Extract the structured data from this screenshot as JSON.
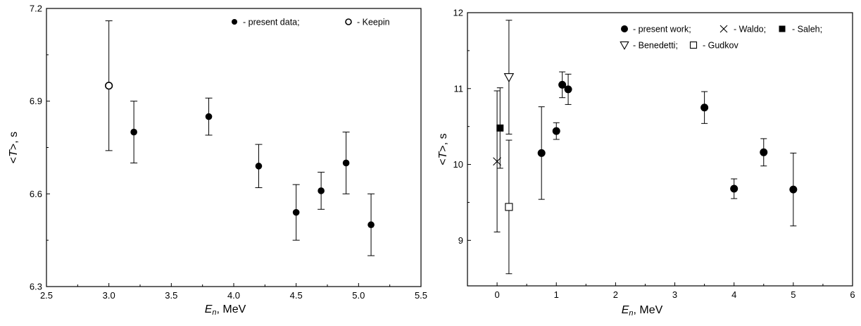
{
  "chart_data": [
    {
      "type": "scatter",
      "xlabel": {
        "var": "E",
        "sub": "n",
        "unit": ", MeV"
      },
      "ylabel": {
        "pre": "<",
        "var": "T",
        "post": ">, s"
      },
      "xlim": [
        2.5,
        5.5
      ],
      "ylim": [
        6.3,
        7.2
      ],
      "xticks": [
        "2.5",
        "3.0",
        "3.5",
        "4.0",
        "4.5",
        "5.0",
        "5.5"
      ],
      "yticks": [
        "6.3",
        "6.6",
        "6.9",
        "7.2"
      ],
      "legend_position": "top-right",
      "series": [
        {
          "name": "- present data;",
          "marker": "filled-circle",
          "points": [
            {
              "x": 3.2,
              "y": 6.8,
              "yerr": 0.1
            },
            {
              "x": 3.8,
              "y": 6.85,
              "yerr": 0.06
            },
            {
              "x": 4.2,
              "y": 6.69,
              "yerr": 0.07
            },
            {
              "x": 4.5,
              "y": 6.54,
              "yerr": 0.09
            },
            {
              "x": 4.7,
              "y": 6.61,
              "yerr": 0.06
            },
            {
              "x": 4.9,
              "y": 6.7,
              "yerr": 0.1
            },
            {
              "x": 5.1,
              "y": 6.5,
              "yerr": 0.1
            }
          ]
        },
        {
          "name": "- Keepin",
          "marker": "open-circle",
          "points": [
            {
              "x": 3.0,
              "y": 6.95,
              "yerr": 0.21
            }
          ]
        }
      ]
    },
    {
      "type": "scatter",
      "xlabel": {
        "var": "E",
        "sub": "n",
        "unit": ", MeV"
      },
      "ylabel": {
        "pre": "<",
        "var": "T",
        "post": ">, s"
      },
      "xlim": [
        -0.5,
        6
      ],
      "ylim": [
        8.4,
        12
      ],
      "xticks": [
        "0",
        "1",
        "2",
        "3",
        "4",
        "5",
        "6"
      ],
      "yticks": [
        "9",
        "10",
        "11",
        "12"
      ],
      "legend_position": "top-right",
      "series": [
        {
          "name": "- present work;",
          "marker": "filled-circle",
          "points": [
            {
              "x": 0.75,
              "y": 10.15,
              "yerr": 0.61
            },
            {
              "x": 1.0,
              "y": 10.44,
              "yerr": 0.11
            },
            {
              "x": 1.1,
              "y": 11.05,
              "yerr": 0.17
            },
            {
              "x": 1.2,
              "y": 10.99,
              "yerr": 0.2
            },
            {
              "x": 3.5,
              "y": 10.75,
              "yerr": 0.21
            },
            {
              "x": 4.0,
              "y": 9.68,
              "yerr": 0.13
            },
            {
              "x": 4.5,
              "y": 10.16,
              "yerr": 0.18
            },
            {
              "x": 5.0,
              "y": 9.67,
              "yerr": 0.48
            }
          ]
        },
        {
          "name": "- Waldo;",
          "marker": "cross",
          "points": [
            {
              "x": 0.0,
              "y": 10.04,
              "yerr": 0.93
            }
          ]
        },
        {
          "name": "- Saleh;",
          "marker": "filled-square",
          "points": [
            {
              "x": 0.05,
              "y": 10.48,
              "yerr": 0.53
            }
          ]
        },
        {
          "name": "- Benedetti;",
          "marker": "open-triangle-down",
          "points": [
            {
              "x": 0.2,
              "y": 11.15,
              "yerr": 0.75
            }
          ]
        },
        {
          "name": "- Gudkov",
          "marker": "open-square",
          "points": [
            {
              "x": 0.2,
              "y": 9.44,
              "yerr": 0.88
            }
          ]
        }
      ]
    }
  ]
}
